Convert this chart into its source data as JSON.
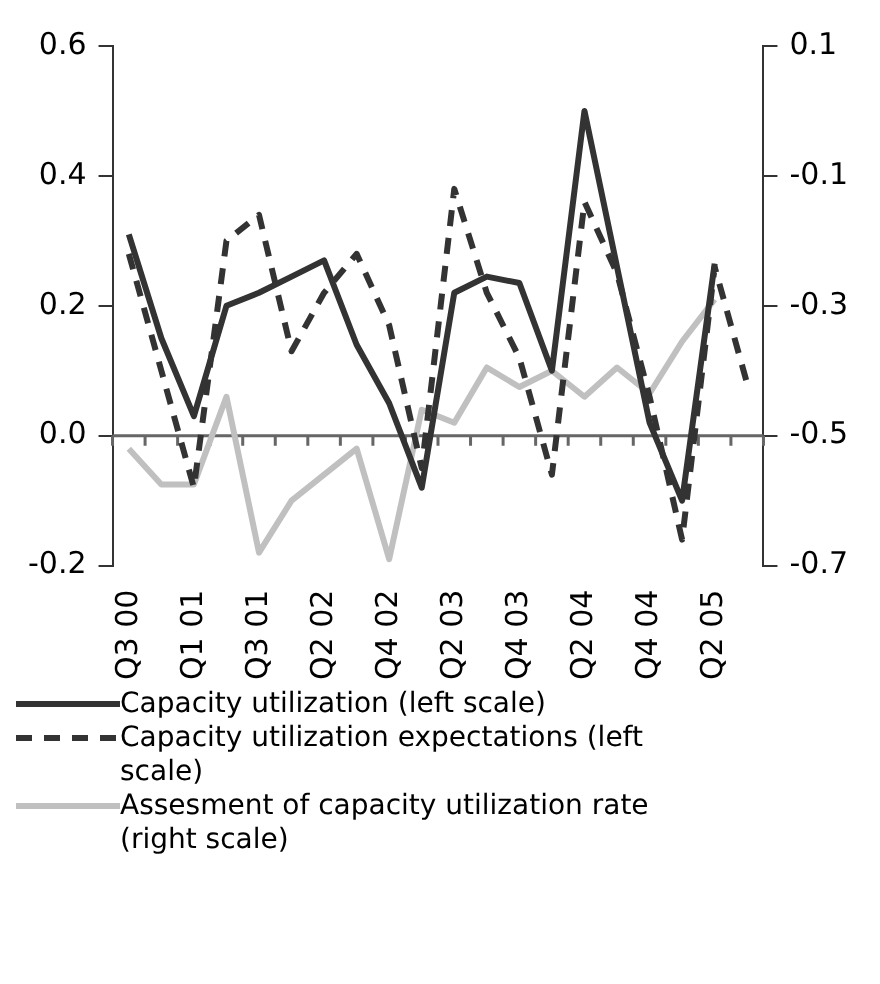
{
  "chart_data": {
    "type": "line",
    "categories": [
      "Q3 00",
      null,
      "Q1 01",
      null,
      "Q3 01",
      null,
      "Q2 02",
      null,
      "Q4 02",
      null,
      "Q2 03",
      null,
      "Q4 03",
      null,
      "Q2 04",
      null,
      "Q4 04",
      null,
      "Q2 05",
      null
    ],
    "series": [
      {
        "name": "Capacity utilization (left scale)",
        "color": "#333333",
        "line_style": "solid",
        "values": [
          0.31,
          0.15,
          0.03,
          0.2,
          0.22,
          0.245,
          0.27,
          0.14,
          0.05,
          -0.08,
          0.22,
          0.245,
          0.235,
          0.1,
          0.5,
          0.26,
          0.02,
          -0.1,
          0.265,
          null
        ]
      },
      {
        "name": "Capacity utilization expectations (left scale)",
        "color": "#333333",
        "line_style": "dashed",
        "values": [
          0.28,
          0.1,
          -0.08,
          0.3,
          0.34,
          0.13,
          0.22,
          0.28,
          0.17,
          -0.05,
          0.38,
          0.22,
          0.12,
          -0.06,
          0.36,
          0.25,
          0.06,
          -0.16,
          0.26,
          0.08
        ]
      },
      {
        "name": "Assesment of capacity utilization rate (right scale)",
        "color": "#c0c0c0",
        "line_style": "solid",
        "axis": "y2",
        "values": [
          -0.52,
          -0.575,
          -0.575,
          -0.44,
          -0.68,
          -0.6,
          -0.56,
          -0.52,
          -0.69,
          -0.46,
          -0.48,
          -0.395,
          -0.425,
          -0.4,
          -0.44,
          -0.395,
          -0.435,
          -0.355,
          -0.29,
          null
        ]
      }
    ],
    "ylim": [
      -0.2,
      0.6
    ],
    "yticks": [
      -0.2,
      {
        "value": 0,
        "label": "0.0"
      },
      0.2,
      0.4,
      0.6
    ],
    "y2lim": [
      -0.7,
      0.1
    ],
    "y2ticks": [
      -0.7,
      -0.5,
      -0.3,
      -0.1,
      0.1
    ],
    "legend": "bottom",
    "marker": "none"
  }
}
